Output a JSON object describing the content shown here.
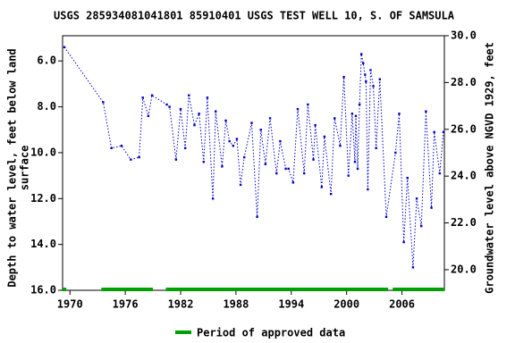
{
  "chart_data": {
    "type": "line",
    "title": "USGS 285934081041801 85910401 USGS TEST WELL 10, S. OF SAMSULA",
    "ylabel": [
      "Depth to water level, feet below land",
      "surface"
    ],
    "y2label": "Groundwater level above NGVD 1929, feet",
    "xlim": [
      1969.2,
      2010.6
    ],
    "xticks": [
      1970,
      1976,
      1982,
      1988,
      1994,
      2000,
      2006
    ],
    "ylim": [
      16.0,
      4.9
    ],
    "yticks": [
      {
        "value": 6,
        "label": "6.0"
      },
      {
        "value": 8,
        "label": "8.0"
      },
      {
        "value": 10,
        "label": "10.0"
      },
      {
        "value": 12,
        "label": "12.0"
      },
      {
        "value": 14,
        "label": "14.0"
      },
      {
        "value": 16,
        "label": "16.0"
      }
    ],
    "y2lim": [
      19.12,
      30.0
    ],
    "y2ticks": [
      {
        "value": 20,
        "label": "20.0"
      },
      {
        "value": 22,
        "label": "22.0"
      },
      {
        "value": 24,
        "label": "24.0"
      },
      {
        "value": 26,
        "label": "26.0"
      },
      {
        "value": 28,
        "label": "28.0"
      },
      {
        "value": 30,
        "label": "30.0"
      }
    ],
    "x": [
      1969.4,
      1973.6,
      1974.5,
      1975.6,
      1976.6,
      1977.5,
      1977.9,
      1978.5,
      1978.9,
      1980.5,
      1980.8,
      1981.5,
      1982.0,
      1982.5,
      1982.9,
      1983.5,
      1984.0,
      1984.5,
      1984.9,
      1985.5,
      1985.8,
      1986.5,
      1986.9,
      1987.3,
      1987.7,
      1988.1,
      1988.5,
      1988.9,
      1989.7,
      1990.3,
      1990.7,
      1991.2,
      1991.7,
      1992.4,
      1992.8,
      1993.4,
      1993.7,
      1994.2,
      1994.7,
      1995.4,
      1995.8,
      1996.4,
      1996.6,
      1997.3,
      1997.6,
      1998.3,
      1998.7,
      1999.3,
      1999.7,
      2000.2,
      2000.6,
      2000.9,
      2001.0,
      2001.2,
      2001.4,
      2001.6,
      2001.8,
      2002.0,
      2002.1,
      2002.3,
      2002.6,
      2002.9,
      2003.2,
      2003.6,
      2004.3,
      2005.3,
      2005.7,
      2006.2,
      2006.6,
      2007.2,
      2007.6,
      2008.1,
      2008.6,
      2009.2,
      2009.5,
      2010.1,
      2010.5
    ],
    "series": [
      {
        "color": "#0000cc",
        "values": [
          5.4,
          7.8,
          9.8,
          9.7,
          10.3,
          10.2,
          7.6,
          8.4,
          7.5,
          7.9,
          8.0,
          10.3,
          8.1,
          9.8,
          7.5,
          8.8,
          8.3,
          10.4,
          7.6,
          12.0,
          8.2,
          10.6,
          8.6,
          9.5,
          9.7,
          9.4,
          11.4,
          10.2,
          8.7,
          12.8,
          9.0,
          10.5,
          8.5,
          10.9,
          9.5,
          10.7,
          10.7,
          11.3,
          8.1,
          10.9,
          7.9,
          10.3,
          8.8,
          11.5,
          9.3,
          11.8,
          8.5,
          9.7,
          6.7,
          11.0,
          8.3,
          10.4,
          8.4,
          10.7,
          7.9,
          5.7,
          6.1,
          6.6,
          6.9,
          11.6,
          6.4,
          7.1,
          9.8,
          6.8,
          12.8,
          10.0,
          8.3,
          13.9,
          11.1,
          15.0,
          12.0,
          13.2,
          8.2,
          12.4,
          9.1,
          10.9,
          9.1
        ]
      }
    ],
    "approved_periods": [
      [
        1969.2,
        1969.6
      ],
      [
        1973.4,
        1979.0
      ],
      [
        1980.4,
        2004.5
      ],
      [
        2005.0,
        2010.6
      ]
    ],
    "approved_color": "#00a000",
    "legend": "Period of approved data"
  }
}
